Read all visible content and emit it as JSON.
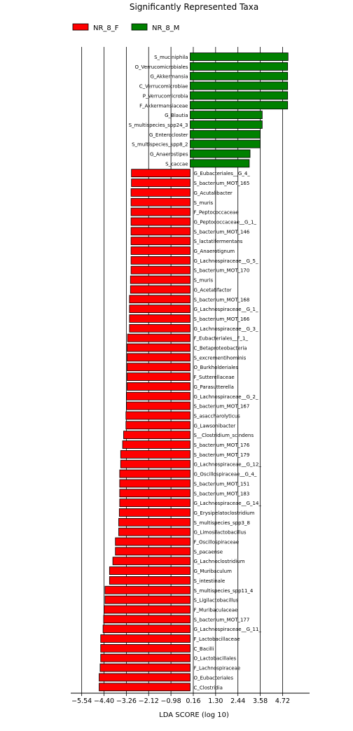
{
  "chart_data": {
    "type": "bar",
    "orientation": "horizontal",
    "title": "Significantly Represented Taxa",
    "xlabel": "LDA SCORE (log 10)",
    "ylabel": "",
    "xlim": [
      -6.1,
      6.1
    ],
    "xticks": [
      -5.54,
      -4.4,
      -3.26,
      -2.12,
      -0.98,
      0.16,
      1.3,
      2.44,
      3.58,
      4.72
    ],
    "xtick_labels": [
      "−5.54",
      "−4.40",
      "−3.26",
      "−2.12",
      "−0.98",
      "0.16",
      "1.30",
      "2.44",
      "3.58",
      "4.72"
    ],
    "grid": "vertical",
    "legend_position": "top-left",
    "colors": {
      "NR_8_F": "#ff0000",
      "NR_8_M": "#008000"
    },
    "series": [
      {
        "name": "NR_8_F",
        "color": "#ff0000"
      },
      {
        "name": "NR_8_M",
        "color": "#008000"
      }
    ],
    "bars": [
      {
        "label": "S_muciniphila",
        "value": 5.0,
        "group": "NR_8_M"
      },
      {
        "label": "O_Verrucomicrobiales",
        "value": 4.98,
        "group": "NR_8_M"
      },
      {
        "label": "G_Akkermansia",
        "value": 4.98,
        "group": "NR_8_M"
      },
      {
        "label": "C_Verrucomicrobiae",
        "value": 4.98,
        "group": "NR_8_M"
      },
      {
        "label": "P_Verrucomicrobia",
        "value": 4.98,
        "group": "NR_8_M"
      },
      {
        "label": "F_Akkermansiaceae",
        "value": 4.98,
        "group": "NR_8_M"
      },
      {
        "label": "G_Blautia",
        "value": 3.68,
        "group": "NR_8_M"
      },
      {
        "label": "S_multispecies_spp24_3",
        "value": 3.68,
        "group": "NR_8_M"
      },
      {
        "label": "G_Enterocloster",
        "value": 3.58,
        "group": "NR_8_M"
      },
      {
        "label": "S_multispecies_spp8_2",
        "value": 3.58,
        "group": "NR_8_M"
      },
      {
        "label": "G_Anaerostipes",
        "value": 3.06,
        "group": "NR_8_M"
      },
      {
        "label": "S_caccae",
        "value": 3.02,
        "group": "NR_8_M"
      },
      {
        "label": "G_Eubacteriales__G_4_",
        "value": -3.0,
        "group": "NR_8_F"
      },
      {
        "label": "S_bacterium_MOT_165",
        "value": -3.0,
        "group": "NR_8_F"
      },
      {
        "label": "G_Acutalibacter",
        "value": -3.02,
        "group": "NR_8_F"
      },
      {
        "label": "S_muris",
        "value": -3.02,
        "group": "NR_8_F"
      },
      {
        "label": "F_Peptococcaceae",
        "value": -3.02,
        "group": "NR_8_F"
      },
      {
        "label": "G_Peptococcaceae__G_1_",
        "value": -3.02,
        "group": "NR_8_F"
      },
      {
        "label": "S_bacterium_MOT_146",
        "value": -3.02,
        "group": "NR_8_F"
      },
      {
        "label": "S_lactatifermentans",
        "value": -3.02,
        "group": "NR_8_F"
      },
      {
        "label": "G_Anaerotignum",
        "value": -3.02,
        "group": "NR_8_F"
      },
      {
        "label": "G_Lachnospiraceae__G_5_",
        "value": -3.02,
        "group": "NR_8_F"
      },
      {
        "label": "S_bacterium_MOT_170",
        "value": -3.02,
        "group": "NR_8_F"
      },
      {
        "label": "S_muris",
        "value": -3.05,
        "group": "NR_8_F"
      },
      {
        "label": "G_Acetatifactor",
        "value": -3.05,
        "group": "NR_8_F"
      },
      {
        "label": "S_bacterium_MOT_168",
        "value": -3.1,
        "group": "NR_8_F"
      },
      {
        "label": "G_Lachnospiraceae__G_1_",
        "value": -3.1,
        "group": "NR_8_F"
      },
      {
        "label": "S_bacterium_MOT_166",
        "value": -3.1,
        "group": "NR_8_F"
      },
      {
        "label": "G_Lachnospiraceae__G_3_",
        "value": -3.1,
        "group": "NR_8_F"
      },
      {
        "label": "F_Eubacteriales__F_1_",
        "value": -3.2,
        "group": "NR_8_F"
      },
      {
        "label": "C_Betaproteobacteria",
        "value": -3.22,
        "group": "NR_8_F"
      },
      {
        "label": "S_excrementihominis",
        "value": -3.22,
        "group": "NR_8_F"
      },
      {
        "label": "O_Burkholderiales",
        "value": -3.22,
        "group": "NR_8_F"
      },
      {
        "label": "F_Sutterellaceae",
        "value": -3.22,
        "group": "NR_8_F"
      },
      {
        "label": "G_Parasutterella",
        "value": -3.22,
        "group": "NR_8_F"
      },
      {
        "label": "G_Lachnospiraceae__G_2_",
        "value": -3.25,
        "group": "NR_8_F"
      },
      {
        "label": "S_bacterium_MOT_167",
        "value": -3.25,
        "group": "NR_8_F"
      },
      {
        "label": "S_asaccharolyticus",
        "value": -3.28,
        "group": "NR_8_F"
      },
      {
        "label": "G_Lawsonibacter",
        "value": -3.28,
        "group": "NR_8_F"
      },
      {
        "label": "S__Clostridium_scindens",
        "value": -3.4,
        "group": "NR_8_F"
      },
      {
        "label": "S_bacterium_MOT_176",
        "value": -3.45,
        "group": "NR_8_F"
      },
      {
        "label": "S_bacterium_MOT_179",
        "value": -3.55,
        "group": "NR_8_F"
      },
      {
        "label": "G_Lachnospiraceae__G_12_",
        "value": -3.55,
        "group": "NR_8_F"
      },
      {
        "label": "G_Oscillospiraceae__G_4_",
        "value": -3.6,
        "group": "NR_8_F"
      },
      {
        "label": "S_bacterium_MOT_151",
        "value": -3.6,
        "group": "NR_8_F"
      },
      {
        "label": "S_bacterium_MOT_183",
        "value": -3.6,
        "group": "NR_8_F"
      },
      {
        "label": "G_Lachnospiraceae__G_14_",
        "value": -3.6,
        "group": "NR_8_F"
      },
      {
        "label": "G_Erysipelatoclostridium",
        "value": -3.62,
        "group": "NR_8_F"
      },
      {
        "label": "S_multispecies_spp3_8",
        "value": -3.65,
        "group": "NR_8_F"
      },
      {
        "label": "G_Limosilactobacillus",
        "value": -3.65,
        "group": "NR_8_F"
      },
      {
        "label": "F_Oscillospiraceae",
        "value": -3.82,
        "group": "NR_8_F"
      },
      {
        "label": "S_pacaense",
        "value": -3.82,
        "group": "NR_8_F"
      },
      {
        "label": "G_Lachnoclostridium",
        "value": -3.95,
        "group": "NR_8_F"
      },
      {
        "label": "G_Muribaculum",
        "value": -4.12,
        "group": "NR_8_F"
      },
      {
        "label": "S_intestinale",
        "value": -4.12,
        "group": "NR_8_F"
      },
      {
        "label": "S_multispecies_spp11_4",
        "value": -4.35,
        "group": "NR_8_F"
      },
      {
        "label": "S_Ligilactobacillus",
        "value": -4.35,
        "group": "NR_8_F"
      },
      {
        "label": "F_Muribaculaceae",
        "value": -4.4,
        "group": "NR_8_F"
      },
      {
        "label": "S_bacterium_MOT_177",
        "value": -4.42,
        "group": "NR_8_F"
      },
      {
        "label": "G_Lachnospiraceae__G_11_",
        "value": -4.45,
        "group": "NR_8_F"
      },
      {
        "label": "F_Lactobacillaceae",
        "value": -4.57,
        "group": "NR_8_F"
      },
      {
        "label": "C_Bacilli",
        "value": -4.57,
        "group": "NR_8_F"
      },
      {
        "label": "O_Lactobacillales",
        "value": -4.57,
        "group": "NR_8_F"
      },
      {
        "label": "F_Lachnospiraceae",
        "value": -4.6,
        "group": "NR_8_F"
      },
      {
        "label": "O_Eubacteriales",
        "value": -4.65,
        "group": "NR_8_F"
      },
      {
        "label": "C_Clostridia",
        "value": -4.65,
        "group": "NR_8_F"
      }
    ]
  }
}
